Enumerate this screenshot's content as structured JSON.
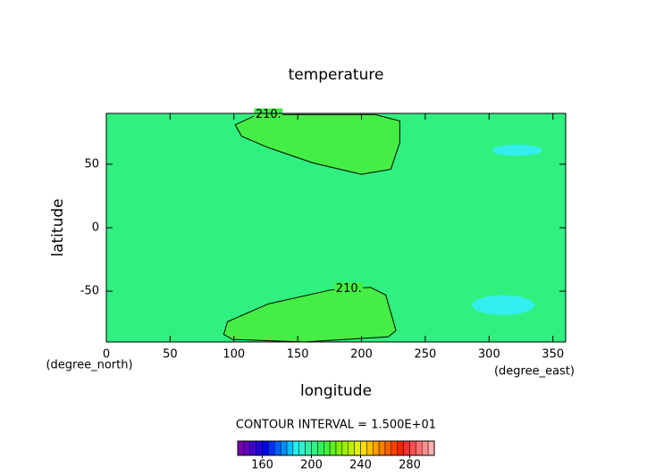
{
  "chart_data": {
    "type": "contour",
    "title": "temperature",
    "xlabel": "longitude",
    "ylabel": "latitude",
    "xunit": "(degree_east)",
    "yunit": "(degree_north)",
    "xlim": [
      0,
      360
    ],
    "ylim": [
      -90,
      90
    ],
    "xticks": [
      0,
      50,
      100,
      150,
      200,
      250,
      300,
      350
    ],
    "yticks": [
      -50,
      0,
      50
    ],
    "background_color": "#30f080",
    "contours": [
      {
        "label": "210.",
        "color": "#44ee44",
        "lon": [
          127,
          148,
          211,
          230,
          230,
          223,
          200,
          162,
          127,
          106,
          101,
          116
        ],
        "lat": [
          89,
          89,
          89,
          84,
          67,
          46,
          42,
          51,
          63,
          72,
          81,
          88
        ]
      },
      {
        "label": "210.",
        "color": "#44ee44",
        "lon": [
          190,
          207,
          219,
          227,
          221,
          155,
          99,
          92,
          95,
          127,
          176
        ],
        "lat": [
          -48,
          -47,
          -53,
          -81,
          -86,
          -90,
          -88,
          -84,
          -74,
          -60,
          -49
        ]
      }
    ],
    "fills": [
      {
        "color": "#33eeee",
        "lon": [
          342,
          339.3,
          332,
          322,
          312,
          304.7,
          302,
          304.7,
          312,
          322,
          332,
          339.3
        ],
        "lat": [
          61,
          63.25,
          64.9,
          65.5,
          64.9,
          63.25,
          61,
          58.75,
          57.1,
          56.5,
          57.1,
          58.75
        ]
      },
      {
        "color": "#33eeee",
        "lon": [
          336,
          332.7,
          323.5,
          311,
          298.5,
          289.3,
          286,
          289.3,
          298.5,
          311,
          323.5,
          332.7
        ],
        "lat": [
          -61,
          -57,
          -54.1,
          -53,
          -54.1,
          -57,
          -61,
          -65,
          -67.9,
          -69,
          -67.9,
          -65
        ]
      }
    ],
    "contour_interval": "CONTOUR INTERVAL = 1.500E+01",
    "colorbar": {
      "lim": [
        140,
        300
      ],
      "ticks": [
        160,
        200,
        240,
        280
      ],
      "colors": [
        "#7a00b0",
        "#6000c0",
        "#4000d0",
        "#2000e0",
        "#0000f0",
        "#0030ff",
        "#0060ff",
        "#0090ff",
        "#00c0ff",
        "#20f0f0",
        "#30f0d0",
        "#30f0a0",
        "#30f080",
        "#30f060",
        "#40f040",
        "#60f020",
        "#80f000",
        "#a0f000",
        "#c0f000",
        "#e0f000",
        "#ffe000",
        "#ffc000",
        "#ffa000",
        "#ff8000",
        "#ff6000",
        "#ff4000",
        "#ff2000",
        "#ff3030",
        "#ff5050",
        "#ff7070",
        "#ff9090",
        "#ffb0b0"
      ]
    }
  }
}
